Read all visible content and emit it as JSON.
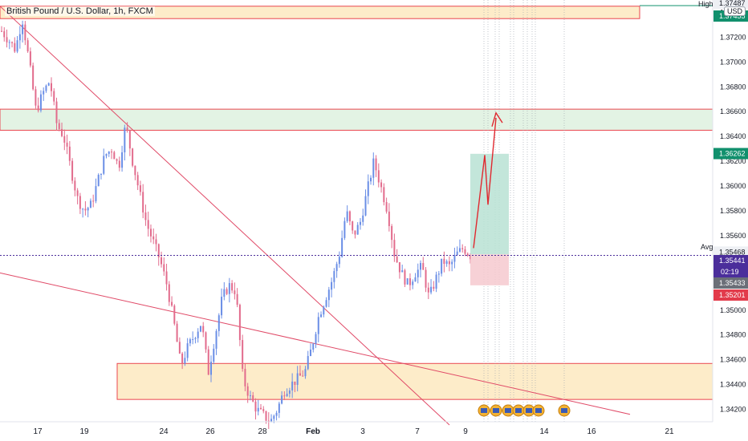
{
  "header": {
    "title": "British Pound / U.S. Dollar, 1h, FXCM",
    "high_label": "High",
    "currency_label": "USD",
    "avg_label": "Avg"
  },
  "colors": {
    "up": "#6a8ee6",
    "down": "#e26b8c",
    "zone_yellow": "#fdebc4",
    "zone_green": "#e0f2e2",
    "zone_border": "#e8333d",
    "target_green": "#b9e2d4",
    "stop_red": "#f6c9cf",
    "arrow_red": "#e0282f"
  },
  "chart_data": {
    "type": "candlestick",
    "title": "British Pound / U.S. Dollar, 1h, FXCM",
    "y_range": [
      1.341,
      1.375
    ],
    "y_ticks": [
      "1.34200",
      "1.34400",
      "1.34600",
      "1.34800",
      "1.35000",
      "1.35200",
      "1.35400",
      "1.35600",
      "1.35800",
      "1.36000",
      "1.36200",
      "1.36400",
      "1.36600",
      "1.36800",
      "1.37000",
      "1.37200",
      "1.37400"
    ],
    "x_ticks": [
      "17",
      "19",
      "24",
      "26",
      "28",
      "Feb",
      "3",
      "7",
      "9",
      "14",
      "16",
      "21"
    ],
    "series_close_path": [
      1.3725,
      1.3718,
      1.371,
      1.3735,
      1.37,
      1.366,
      1.3675,
      1.3685,
      1.365,
      1.364,
      1.3615,
      1.359,
      1.358,
      1.3585,
      1.3605,
      1.3625,
      1.363,
      1.3615,
      1.365,
      1.362,
      1.3595,
      1.357,
      1.3555,
      1.354,
      1.352,
      1.349,
      1.3455,
      1.347,
      1.348,
      1.349,
      1.345,
      1.348,
      1.351,
      1.352,
      1.3515,
      1.3445,
      1.343,
      1.342,
      1.3415,
      1.341,
      1.342,
      1.3435,
      1.344,
      1.3445,
      1.345,
      1.347,
      1.3495,
      1.351,
      1.3525,
      1.3545,
      1.358,
      1.356,
      1.357,
      1.3595,
      1.362,
      1.36,
      1.358,
      1.3545,
      1.353,
      1.352,
      1.353,
      1.3535,
      1.351,
      1.3525,
      1.354,
      1.3535,
      1.3545,
      1.355,
      1.3544
    ],
    "price_labels": [
      {
        "value": 1.37487,
        "text": "1.37487",
        "color": "#ffffff",
        "bg": "#eef0f4",
        "fg": "#131722"
      },
      {
        "value": 1.37455,
        "text": "1.37455",
        "bg": "#11906d",
        "fg": "#ffffff"
      },
      {
        "value": 1.36262,
        "text": "1.36262",
        "bg": "#11906d",
        "fg": "#ffffff"
      },
      {
        "value": 1.35468,
        "text": "1.35468",
        "bg": "#eef0f4",
        "fg": "#131722"
      },
      {
        "value": 1.35441,
        "text": "1.35441",
        "bg": "#4b2e9b",
        "fg": "#ffffff"
      },
      {
        "value": 1.35433,
        "text": "1.35433",
        "bg": "#6b6f78",
        "fg": "#ffffff"
      },
      {
        "value": 1.35201,
        "text": "1.35201",
        "bg": "#e23b4b",
        "fg": "#ffffff"
      }
    ],
    "countdown": "02:19",
    "current_price": 1.35441,
    "zones": [
      {
        "name": "resistance-top",
        "y1": 1.3745,
        "y2": 1.3735,
        "color": "yellow"
      },
      {
        "name": "resistance-mid",
        "y1": 1.3662,
        "y2": 1.3645,
        "color": "green"
      },
      {
        "name": "support-bottom",
        "y1": 1.3457,
        "y2": 1.3428,
        "color": "yellow"
      }
    ],
    "position": {
      "entry": 1.3545,
      "target": 1.3626,
      "stop": 1.352
    },
    "legend": "none",
    "grid": false
  }
}
